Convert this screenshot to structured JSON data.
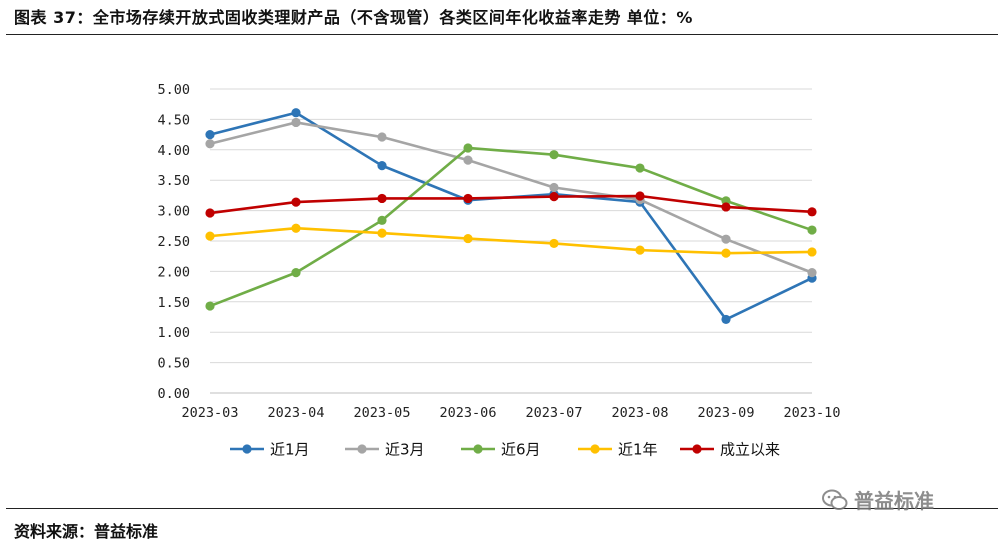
{
  "title": "图表 37：全市场存续开放式固收类理财产品（不含现管）各类区间年化收益率走势    单位：%",
  "source": "资料来源：普益标准",
  "watermark": "普益标准",
  "chart_data": {
    "type": "line",
    "x": [
      "2023-03",
      "2023-04",
      "2023-05",
      "2023-06",
      "2023-07",
      "2023-08",
      "2023-09",
      "2023-10"
    ],
    "ylim": [
      0,
      5
    ],
    "yticks": [
      "0.00",
      "0.50",
      "1.00",
      "1.50",
      "2.00",
      "2.50",
      "3.00",
      "3.50",
      "4.00",
      "4.50",
      "5.00"
    ],
    "grid": true,
    "legend_position": "bottom",
    "series": [
      {
        "name": "近1月",
        "color": "#2E75B6",
        "values": [
          4.25,
          4.61,
          3.74,
          3.17,
          3.27,
          3.14,
          1.21,
          1.89
        ]
      },
      {
        "name": "近3月",
        "color": "#A5A5A5",
        "values": [
          4.1,
          4.45,
          4.21,
          3.83,
          3.38,
          3.18,
          2.53,
          1.98
        ]
      },
      {
        "name": "近6月",
        "color": "#70AD47",
        "values": [
          1.43,
          1.98,
          2.84,
          4.03,
          3.92,
          3.7,
          3.16,
          2.68
        ]
      },
      {
        "name": "近1年",
        "color": "#FFC000",
        "values": [
          2.58,
          2.71,
          2.63,
          2.54,
          2.46,
          2.35,
          2.3,
          2.32
        ]
      },
      {
        "name": "成立以来",
        "color": "#C00000",
        "values": [
          2.96,
          3.14,
          3.2,
          3.2,
          3.23,
          3.24,
          3.06,
          2.98
        ]
      }
    ]
  }
}
